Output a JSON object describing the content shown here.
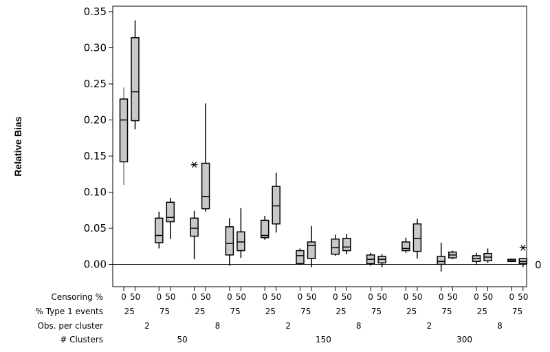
{
  "chart_data": {
    "type": "boxplot",
    "ylabel": "Relative Bias",
    "ylim": [
      -0.03,
      0.355
    ],
    "yticks": [
      "0.00",
      "0.05",
      "0.10",
      "0.15",
      "0.20",
      "0.25",
      "0.30",
      "0.35"
    ],
    "reference_line": {
      "value": 0,
      "label": "0"
    },
    "row_labels": [
      "Censoring %",
      "% Type 1 events",
      "Obs. per cluster",
      "# Clusters"
    ],
    "clusters": [
      "50",
      "150",
      "300"
    ],
    "obs_per_cluster": [
      "2",
      "8"
    ],
    "type1_events": [
      "25",
      "75"
    ],
    "censoring": [
      "0",
      "50"
    ],
    "boxes": [
      {
        "clusters": "50",
        "obs": "2",
        "type1": "25",
        "censoring": "0",
        "min": 0.11,
        "q1": 0.142,
        "median": 0.2,
        "q3": 0.229,
        "max": 0.245,
        "outliers": []
      },
      {
        "clusters": "50",
        "obs": "2",
        "type1": "25",
        "censoring": "50",
        "min": 0.187,
        "q1": 0.199,
        "median": 0.239,
        "q3": 0.314,
        "max": 0.338,
        "outliers": []
      },
      {
        "clusters": "50",
        "obs": "2",
        "type1": "75",
        "censoring": "0",
        "min": 0.022,
        "q1": 0.03,
        "median": 0.04,
        "q3": 0.064,
        "max": 0.073,
        "outliers": []
      },
      {
        "clusters": "50",
        "obs": "2",
        "type1": "75",
        "censoring": "50",
        "min": 0.035,
        "q1": 0.059,
        "median": 0.065,
        "q3": 0.086,
        "max": 0.092,
        "outliers": []
      },
      {
        "clusters": "50",
        "obs": "8",
        "type1": "25",
        "censoring": "0",
        "min": 0.007,
        "q1": 0.039,
        "median": 0.05,
        "q3": 0.064,
        "max": 0.074,
        "outliers": [
          0.138
        ]
      },
      {
        "clusters": "50",
        "obs": "8",
        "type1": "25",
        "censoring": "50",
        "min": 0.073,
        "q1": 0.077,
        "median": 0.094,
        "q3": 0.14,
        "max": 0.223,
        "outliers": []
      },
      {
        "clusters": "50",
        "obs": "8",
        "type1": "75",
        "censoring": "0",
        "min": -0.002,
        "q1": 0.013,
        "median": 0.029,
        "q3": 0.052,
        "max": 0.064,
        "outliers": []
      },
      {
        "clusters": "50",
        "obs": "8",
        "type1": "75",
        "censoring": "50",
        "min": 0.009,
        "q1": 0.019,
        "median": 0.031,
        "q3": 0.045,
        "max": 0.078,
        "outliers": []
      },
      {
        "clusters": "150",
        "obs": "2",
        "type1": "25",
        "censoring": "0",
        "min": 0.034,
        "q1": 0.037,
        "median": 0.04,
        "q3": 0.061,
        "max": 0.067,
        "outliers": []
      },
      {
        "clusters": "150",
        "obs": "2",
        "type1": "25",
        "censoring": "50",
        "min": 0.044,
        "q1": 0.056,
        "median": 0.081,
        "q3": 0.108,
        "max": 0.127,
        "outliers": []
      },
      {
        "clusters": "150",
        "obs": "2",
        "type1": "75",
        "censoring": "0",
        "min": -0.001,
        "q1": 0.001,
        "median": 0.012,
        "q3": 0.019,
        "max": 0.022,
        "outliers": []
      },
      {
        "clusters": "150",
        "obs": "2",
        "type1": "75",
        "censoring": "50",
        "min": -0.004,
        "q1": 0.008,
        "median": 0.026,
        "q3": 0.031,
        "max": 0.053,
        "outliers": []
      },
      {
        "clusters": "150",
        "obs": "8",
        "type1": "25",
        "censoring": "0",
        "min": 0.012,
        "q1": 0.014,
        "median": 0.023,
        "q3": 0.035,
        "max": 0.041,
        "outliers": []
      },
      {
        "clusters": "150",
        "obs": "8",
        "type1": "25",
        "censoring": "50",
        "min": 0.014,
        "q1": 0.019,
        "median": 0.024,
        "q3": 0.036,
        "max": 0.042,
        "outliers": []
      },
      {
        "clusters": "150",
        "obs": "8",
        "type1": "75",
        "censoring": "0",
        "min": -0.002,
        "q1": 0.001,
        "median": 0.007,
        "q3": 0.013,
        "max": 0.016,
        "outliers": []
      },
      {
        "clusters": "150",
        "obs": "8",
        "type1": "75",
        "censoring": "50",
        "min": -0.004,
        "q1": 0.002,
        "median": 0.007,
        "q3": 0.011,
        "max": 0.014,
        "outliers": []
      },
      {
        "clusters": "300",
        "obs": "2",
        "type1": "25",
        "censoring": "0",
        "min": 0.016,
        "q1": 0.019,
        "median": 0.022,
        "q3": 0.031,
        "max": 0.037,
        "outliers": []
      },
      {
        "clusters": "300",
        "obs": "2",
        "type1": "25",
        "censoring": "50",
        "min": 0.008,
        "q1": 0.018,
        "median": 0.036,
        "q3": 0.056,
        "max": 0.063,
        "outliers": []
      },
      {
        "clusters": "300",
        "obs": "2",
        "type1": "75",
        "censoring": "0",
        "min": -0.01,
        "q1": 0.0,
        "median": 0.004,
        "q3": 0.011,
        "max": 0.03,
        "outliers": []
      },
      {
        "clusters": "300",
        "obs": "2",
        "type1": "75",
        "censoring": "50",
        "min": 0.007,
        "q1": 0.009,
        "median": 0.013,
        "q3": 0.017,
        "max": 0.019,
        "outliers": []
      },
      {
        "clusters": "300",
        "obs": "8",
        "type1": "25",
        "censoring": "0",
        "min": -0.001,
        "q1": 0.004,
        "median": 0.008,
        "q3": 0.012,
        "max": 0.016,
        "outliers": []
      },
      {
        "clusters": "300",
        "obs": "8",
        "type1": "25",
        "censoring": "50",
        "min": 0.002,
        "q1": 0.005,
        "median": 0.01,
        "q3": 0.015,
        "max": 0.022,
        "outliers": []
      },
      {
        "clusters": "300",
        "obs": "8",
        "type1": "75",
        "censoring": "0",
        "min": 0.003,
        "q1": 0.004,
        "median": 0.005,
        "q3": 0.007,
        "max": 0.008,
        "outliers": []
      },
      {
        "clusters": "300",
        "obs": "8",
        "type1": "75",
        "censoring": "50",
        "min": -0.004,
        "q1": 0.001,
        "median": 0.004,
        "q3": 0.008,
        "max": 0.009,
        "outliers": [
          0.023
        ]
      }
    ],
    "colors": {
      "box_fill": "#c8c8c8",
      "stroke": "#000000",
      "first_whisker": "#808080"
    }
  }
}
